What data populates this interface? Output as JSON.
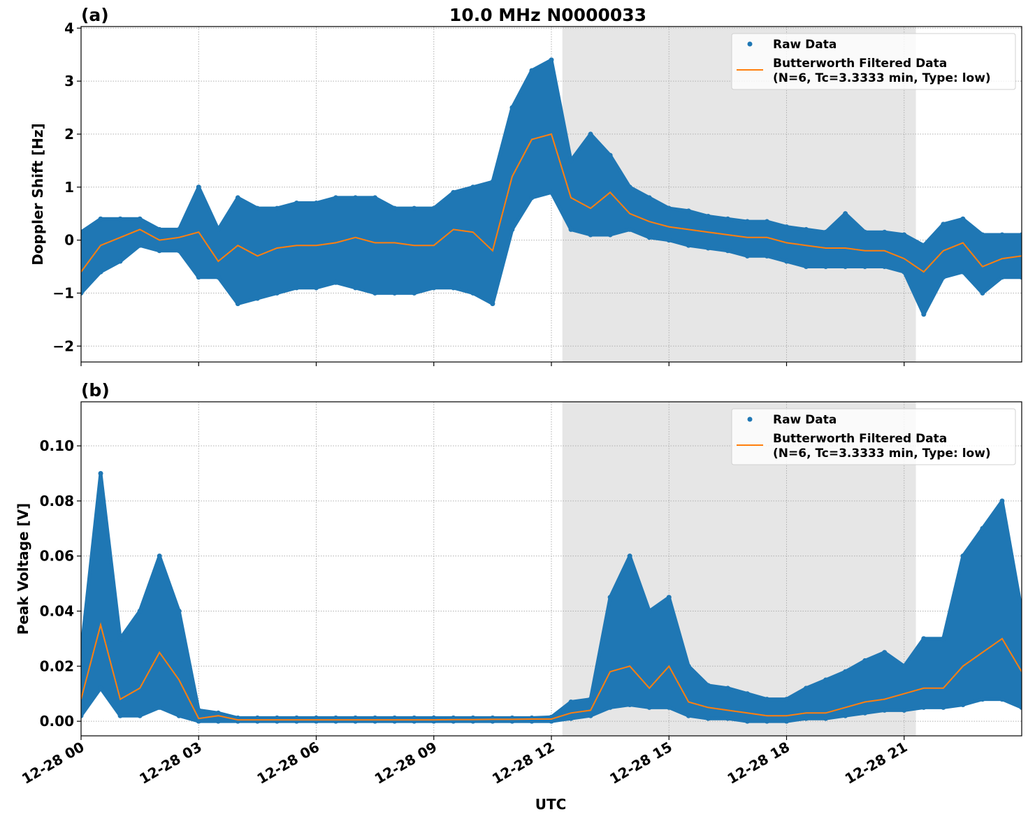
{
  "chart_data": [
    {
      "type": "scatter",
      "panel_label": "(a)",
      "title": "10.0 MHz N0000033",
      "xlabel": "",
      "ylabel": "Doppler Shift [Hz]",
      "xlim_hours": [
        0,
        24
      ],
      "ylim": [
        -2.3,
        4.03
      ],
      "yticks": [
        -2,
        -1,
        0,
        1,
        2,
        3,
        4
      ],
      "ytick_labels": [
        "−2",
        "−1",
        "0",
        "1",
        "2",
        "3",
        "4"
      ],
      "grid": true,
      "shaded_interval_hours": [
        12.28,
        21.3
      ],
      "legend": {
        "placement": "top-right",
        "entries": [
          "Raw Data",
          "Butterworth Filtered Data",
          "(N=6, Tc=3.3333 min, Type: low)"
        ]
      },
      "x_hours": [
        0,
        0.5,
        1,
        1.5,
        2,
        2.5,
        3,
        3.5,
        4,
        4.5,
        5,
        5.5,
        6,
        6.5,
        7,
        7.5,
        8,
        8.5,
        9,
        9.5,
        10,
        10.5,
        11,
        11.5,
        12,
        12.5,
        13,
        13.5,
        14,
        14.5,
        15,
        15.5,
        16,
        16.5,
        17,
        17.5,
        18,
        18.5,
        19,
        19.5,
        20,
        20.5,
        21,
        21.5,
        22,
        22.5,
        23,
        23.5,
        24
      ],
      "series": [
        {
          "name": "Butterworth Filtered Data",
          "color": "#ff7f0e",
          "values": [
            -0.6,
            -0.1,
            0.05,
            0.2,
            0.0,
            0.05,
            0.15,
            -0.4,
            -0.1,
            -0.3,
            -0.15,
            -0.1,
            -0.1,
            -0.05,
            0.05,
            -0.05,
            -0.05,
            -0.1,
            -0.1,
            0.2,
            0.15,
            -0.2,
            1.2,
            1.9,
            2.0,
            0.8,
            0.6,
            0.9,
            0.5,
            0.35,
            0.25,
            0.2,
            0.15,
            0.1,
            0.05,
            0.05,
            -0.05,
            -0.1,
            -0.15,
            -0.15,
            -0.2,
            -0.2,
            -0.35,
            -0.6,
            -0.2,
            -0.05,
            -0.5,
            -0.35,
            -0.3
          ]
        },
        {
          "name": "Raw Data (upper envelope)",
          "color": "#1f77b4",
          "values": [
            0.15,
            0.4,
            0.4,
            0.4,
            0.2,
            0.2,
            1.0,
            0.2,
            0.8,
            0.6,
            0.6,
            0.7,
            0.7,
            0.8,
            0.8,
            0.8,
            0.6,
            0.6,
            0.6,
            0.9,
            1.0,
            1.1,
            2.5,
            3.2,
            3.4,
            1.5,
            2.0,
            1.6,
            1.0,
            0.8,
            0.6,
            0.55,
            0.45,
            0.4,
            0.35,
            0.35,
            0.25,
            0.2,
            0.15,
            0.5,
            0.15,
            0.15,
            0.1,
            -0.1,
            0.3,
            0.4,
            0.1,
            0.1,
            0.1
          ]
        },
        {
          "name": "Raw Data (lower envelope)",
          "color": "#1f77b4",
          "values": [
            -1.0,
            -0.6,
            -0.4,
            -0.1,
            -0.2,
            -0.2,
            -0.7,
            -0.7,
            -1.2,
            -1.1,
            -1.0,
            -0.9,
            -0.9,
            -0.8,
            -0.9,
            -1.0,
            -1.0,
            -1.0,
            -0.9,
            -0.9,
            -1.0,
            -1.2,
            0.2,
            0.8,
            0.9,
            0.2,
            0.1,
            0.1,
            0.2,
            0.05,
            0.0,
            -0.1,
            -0.15,
            -0.2,
            -0.3,
            -0.3,
            -0.4,
            -0.5,
            -0.5,
            -0.5,
            -0.5,
            -0.5,
            -0.6,
            -1.4,
            -0.7,
            -0.6,
            -1.0,
            -0.7,
            -0.7
          ]
        }
      ]
    },
    {
      "type": "scatter",
      "panel_label": "(b)",
      "xlabel": "UTC",
      "ylabel": "Peak Voltage [V]",
      "xlim_hours": [
        0,
        24
      ],
      "ylim": [
        -0.0053,
        0.116
      ],
      "yticks": [
        0,
        0.02,
        0.04,
        0.06,
        0.08,
        0.1
      ],
      "ytick_labels": [
        "0.00",
        "0.02",
        "0.04",
        "0.06",
        "0.08",
        "0.10"
      ],
      "xtick_hours": [
        0,
        3,
        6,
        9,
        12,
        15,
        18,
        21
      ],
      "xtick_labels": [
        "12-28 00",
        "12-28 03",
        "12-28 06",
        "12-28 09",
        "12-28 12",
        "12-28 15",
        "12-28 18",
        "12-28 21"
      ],
      "grid": true,
      "shaded_interval_hours": [
        12.28,
        21.3
      ],
      "legend": {
        "placement": "top-right",
        "entries": [
          "Raw Data",
          "Butterworth Filtered Data",
          "(N=6, Tc=3.3333 min, Type: low)"
        ]
      },
      "x_hours": [
        0,
        0.5,
        1,
        1.5,
        2,
        2.5,
        3,
        3.5,
        4,
        4.5,
        5,
        5.5,
        6,
        6.5,
        7,
        7.5,
        8,
        8.5,
        9,
        9.5,
        10,
        10.5,
        11,
        11.5,
        12,
        12.5,
        13,
        13.5,
        14,
        14.5,
        15,
        15.5,
        16,
        16.5,
        17,
        17.5,
        18,
        18.5,
        19,
        19.5,
        20,
        20.5,
        21,
        21.5,
        22,
        22.5,
        23,
        23.5,
        24
      ],
      "series": [
        {
          "name": "Butterworth Filtered Data",
          "color": "#ff7f0e",
          "values": [
            0.008,
            0.035,
            0.008,
            0.012,
            0.025,
            0.015,
            0.001,
            0.002,
            0.0005,
            0.0005,
            0.0005,
            0.0005,
            0.0005,
            0.0005,
            0.0005,
            0.0005,
            0.0005,
            0.0005,
            0.0005,
            0.0006,
            0.0006,
            0.0007,
            0.0007,
            0.0008,
            0.0008,
            0.003,
            0.004,
            0.018,
            0.02,
            0.012,
            0.02,
            0.007,
            0.005,
            0.004,
            0.003,
            0.002,
            0.002,
            0.003,
            0.003,
            0.005,
            0.007,
            0.008,
            0.01,
            0.012,
            0.012,
            0.02,
            0.025,
            0.03,
            0.018
          ]
        },
        {
          "name": "Raw Data (upper envelope)",
          "color": "#1f77b4",
          "values": [
            0.025,
            0.09,
            0.03,
            0.04,
            0.06,
            0.04,
            0.004,
            0.003,
            0.0012,
            0.0012,
            0.0012,
            0.0012,
            0.0012,
            0.0012,
            0.0012,
            0.0012,
            0.0012,
            0.0012,
            0.0012,
            0.0012,
            0.0012,
            0.0012,
            0.0012,
            0.0012,
            0.0015,
            0.007,
            0.008,
            0.045,
            0.06,
            0.04,
            0.045,
            0.02,
            0.013,
            0.012,
            0.01,
            0.008,
            0.008,
            0.012,
            0.015,
            0.018,
            0.022,
            0.025,
            0.02,
            0.03,
            0.03,
            0.06,
            0.07,
            0.08,
            0.04
          ]
        },
        {
          "name": "Raw Data (lower envelope)",
          "color": "#1f77b4",
          "values": [
            0.002,
            0.012,
            0.002,
            0.002,
            0.005,
            0.002,
            0,
            0,
            0,
            0,
            0,
            0,
            0,
            0,
            0,
            0,
            0,
            0,
            0,
            0,
            0,
            0,
            0,
            0,
            0,
            0.001,
            0.002,
            0.005,
            0.006,
            0.005,
            0.005,
            0.002,
            0.001,
            0.001,
            0,
            0,
            0,
            0.001,
            0.001,
            0.002,
            0.003,
            0.004,
            0.004,
            0.005,
            0.005,
            0.006,
            0.008,
            0.008,
            0.005
          ]
        }
      ]
    }
  ]
}
